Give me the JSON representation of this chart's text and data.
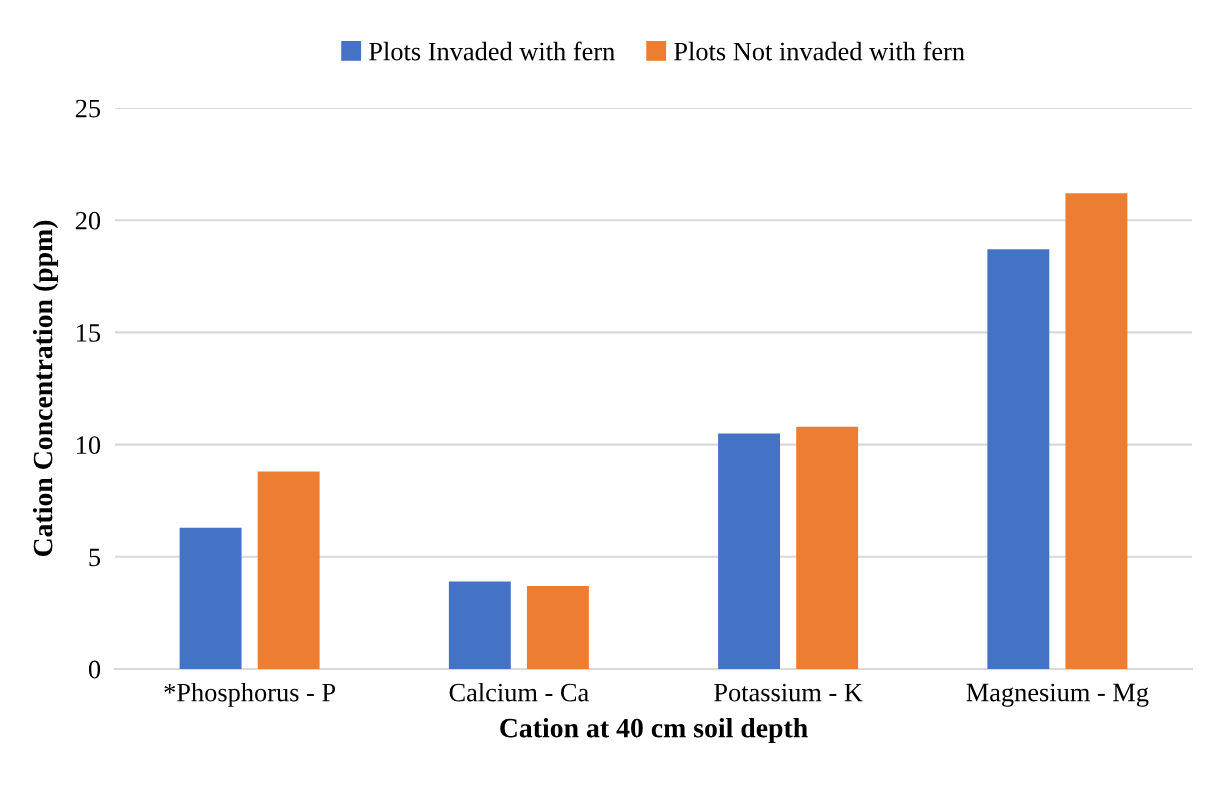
{
  "chart_data": {
    "type": "bar",
    "xlabel": "Cation at 40 cm soil depth",
    "ylabel": "Cation Concentration (ppm)",
    "categories": [
      "*Phosphorus - P",
      "Calcium - Ca",
      "Potassium - K",
      "Magnesium - Mg"
    ],
    "series": [
      {
        "name": "Plots Invaded with fern",
        "color": "#4472c4",
        "values": [
          6.3,
          3.9,
          10.5,
          18.7
        ]
      },
      {
        "name": "Plots Not invaded with fern",
        "color": "#ed7d31",
        "values": [
          8.8,
          3.7,
          10.8,
          21.2
        ]
      }
    ],
    "ylim": [
      0,
      25
    ],
    "yticks": [
      0,
      5,
      10,
      15,
      20,
      25
    ],
    "grid": "y",
    "legend": "top"
  }
}
